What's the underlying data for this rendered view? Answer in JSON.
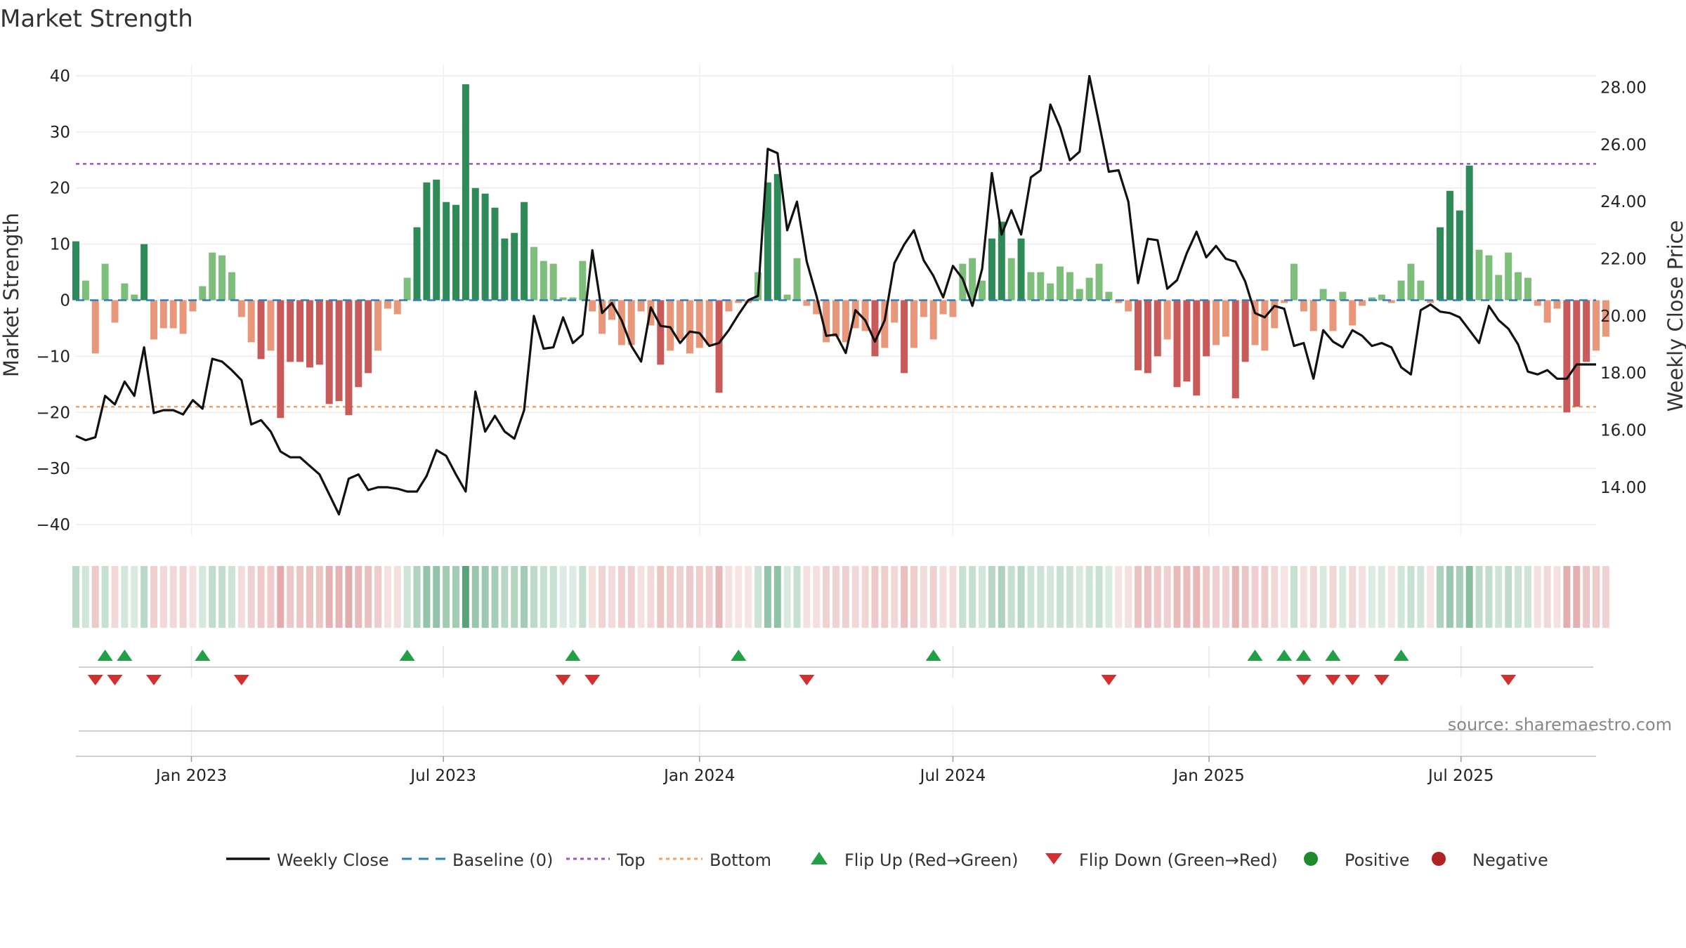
{
  "chart_data": {
    "type": "bar",
    "title": "Market Strength",
    "ylabel_left": "Market Strength",
    "ylabel_right": "Weekly Close Price",
    "source_text": "source: sharemaestro.com",
    "xlim": [
      "2022-10-10",
      "2025-10-06"
    ],
    "ylim_left": [
      -42,
      42
    ],
    "ylim_right": [
      12.3,
      28.8
    ],
    "yticks_left": [
      "40",
      "30",
      "20",
      "10",
      "0",
      "−10",
      "−20",
      "−30",
      "−40"
    ],
    "yticks_left_values": [
      40,
      30,
      20,
      10,
      0,
      -10,
      -20,
      -30,
      -40
    ],
    "yticks_right": [
      "28.00",
      "26.00",
      "24.00",
      "22.00",
      "20.00",
      "18.00",
      "16.00",
      "14.00"
    ],
    "yticks_right_values": [
      28,
      26,
      24,
      22,
      20,
      18,
      16,
      14
    ],
    "xticks": [
      {
        "date": "2023-01-01",
        "label": "Jan 2023"
      },
      {
        "date": "2023-07-01",
        "label": "Jul 2023"
      },
      {
        "date": "2024-01-01",
        "label": "Jan 2024"
      },
      {
        "date": "2024-07-01",
        "label": "Jul 2024"
      },
      {
        "date": "2025-01-01",
        "label": "Jan 2025"
      },
      {
        "date": "2025-07-01",
        "label": "Jul 2025"
      }
    ],
    "top_line": 24.3,
    "bottom_line": -19,
    "start_date": "2022-10-10",
    "week_step_days": 7,
    "strength": [
      10.5,
      3.5,
      -9.5,
      6.5,
      -4,
      3,
      1,
      10,
      -7,
      -5,
      -5,
      -6,
      -2,
      2.5,
      8.5,
      8,
      5,
      -3,
      -7.5,
      -10.5,
      -9,
      -21,
      -11,
      -11,
      -12,
      -11.5,
      -18.5,
      -18,
      -20.5,
      -15.5,
      -13,
      -9,
      -1.5,
      -2.5,
      4,
      13,
      21,
      21.5,
      17.5,
      17,
      38.5,
      20,
      19,
      16.5,
      11,
      12,
      17.5,
      9.5,
      7,
      6.5,
      0.5,
      0.5,
      7,
      -2,
      -6,
      -3.5,
      -8,
      -8,
      -2,
      -4.5,
      -11.5,
      -9,
      -7,
      -9.5,
      -8.5,
      -8,
      -16.5,
      -2,
      -0.5,
      -0.5,
      5,
      21,
      22.5,
      1,
      7.5,
      -1,
      -2.5,
      -7.5,
      -6.5,
      -7.5,
      -5,
      -5.5,
      -10,
      -8.5,
      -4,
      -13,
      -8.5,
      -3,
      -7,
      -2.5,
      -3,
      6.5,
      7.5,
      3.5,
      11,
      14,
      7.5,
      11,
      5,
      5,
      3,
      6,
      5,
      2,
      4,
      6.5,
      1.5,
      -0.5,
      -2,
      -12.5,
      -13,
      -10,
      -7,
      -15.5,
      -14.5,
      -17,
      -10,
      -8,
      -6.5,
      -17.5,
      -11,
      -8,
      -9,
      -5,
      -0.5,
      6.5,
      -2,
      -5.5,
      2,
      -5.5,
      1.5,
      -4.5,
      -1,
      0.5,
      1,
      -0.5,
      3.5,
      6.5,
      3.5,
      -0.5,
      13,
      19.5,
      16,
      24,
      9,
      8,
      4.5,
      8.5,
      5,
      4,
      -1,
      -4,
      -1.5,
      -20,
      -19,
      -11,
      -9,
      -6.5
    ],
    "close": [
      15.8,
      15.65,
      15.75,
      17.2,
      16.9,
      17.7,
      17.2,
      18.9,
      16.6,
      16.7,
      16.7,
      16.55,
      17.05,
      16.75,
      18.5,
      18.4,
      18.1,
      17.75,
      16.2,
      16.35,
      15.95,
      15.25,
      15.05,
      15.05,
      14.75,
      14.45,
      13.75,
      13.05,
      14.3,
      14.45,
      13.9,
      14.0,
      14.0,
      13.95,
      13.85,
      13.85,
      14.4,
      15.3,
      15.1,
      14.45,
      13.85,
      17.35,
      15.95,
      16.5,
      15.95,
      15.7,
      16.7,
      20.0,
      18.85,
      18.9,
      19.95,
      19.05,
      19.35,
      22.3,
      20.1,
      20.45,
      19.85,
      18.95,
      18.4,
      20.3,
      19.65,
      19.6,
      19.05,
      19.45,
      19.4,
      18.95,
      19.05,
      19.5,
      20.05,
      20.55,
      20.7,
      25.85,
      25.7,
      23.0,
      24.0,
      21.9,
      20.7,
      19.3,
      19.35,
      18.7,
      20.2,
      19.85,
      19.1,
      19.85,
      21.85,
      22.5,
      23.0,
      21.95,
      21.4,
      20.65,
      21.75,
      21.3,
      20.35,
      21.65,
      25.0,
      22.85,
      23.7,
      22.85,
      24.85,
      25.1,
      27.4,
      26.6,
      25.45,
      25.75,
      28.4,
      26.75,
      25.05,
      25.1,
      24.0,
      21.15,
      22.7,
      22.65,
      20.95,
      21.25,
      22.2,
      22.95,
      22.05,
      22.45,
      22.0,
      21.9,
      21.2,
      20.1,
      19.95,
      20.35,
      20.25,
      18.95,
      19.05,
      17.8,
      19.5,
      19.1,
      18.9,
      19.5,
      19.3,
      18.95,
      19.05,
      18.9,
      18.2,
      17.95,
      20.2,
      20.4,
      20.15,
      20.1,
      19.95,
      19.5,
      19.05,
      20.35,
      19.85,
      19.55,
      19.0,
      18.05,
      17.95,
      18.1,
      17.8,
      17.8,
      18.3,
      18.3,
      18.3
    ],
    "flip_up_weeks": [
      3,
      5,
      13,
      34,
      51,
      68,
      88,
      121,
      124,
      126,
      129,
      136
    ],
    "flip_down_weeks": [
      2,
      4,
      8,
      17,
      50,
      53,
      75,
      106,
      126,
      129,
      131,
      134,
      147
    ],
    "series": [
      {
        "name": "Weekly Close"
      },
      {
        "name": "Baseline (0)"
      },
      {
        "name": "Top"
      },
      {
        "name": "Bottom"
      },
      {
        "name": "Flip Up (Red→Green)"
      },
      {
        "name": "Flip Down (Green→Red)"
      },
      {
        "name": "Positive"
      },
      {
        "name": "Negative"
      }
    ],
    "legend_position": "bottom-center",
    "grid": true,
    "colors": {
      "pos_strong": "#2e8b57",
      "pos_light": "#7dbf7a",
      "neg_strong": "#c85a5a",
      "neg_light": "#e8977a",
      "close_line": "#111111",
      "baseline": "#2c7fb8",
      "top_line": "#9b59b6",
      "bottom_line": "#f0a060",
      "flip_up": "#22a045",
      "flip_down": "#d32f2f",
      "positive": "#1e8a2e",
      "negative": "#b22222"
    }
  }
}
